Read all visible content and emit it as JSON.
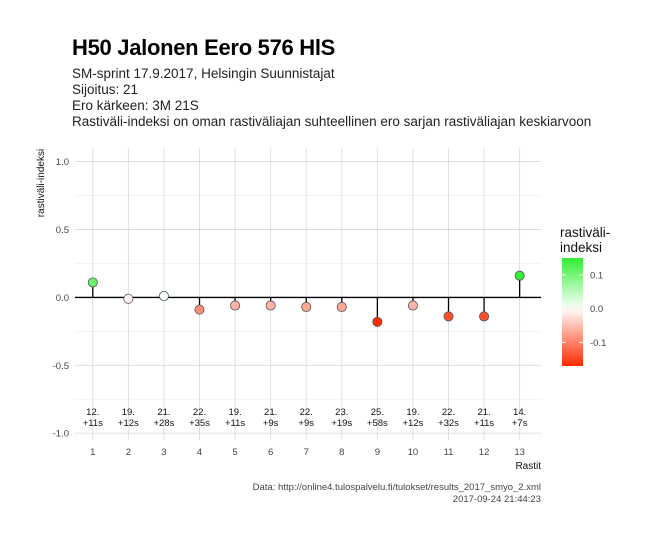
{
  "header": {
    "title": "H50 Jalonen Eero 576 HlS",
    "subtitle_lines": [
      "SM-sprint 17.9.2017, Helsingin Suunnistajat",
      "Sijoitus: 21",
      "Ero kärkeen: 3M 21S",
      "Rastiväli-indeksi on oman rastiväliajan suhteellinen ero sarjan rastiväliajan keskiarvoon"
    ]
  },
  "caption": {
    "source": "Data: http://online4.tulospalvelu.fi/tulokset/results_2017_smyo_2.xml",
    "timestamp": "2017-09-24 21:44:23"
  },
  "legend": {
    "title_lines": [
      "rastiväli-",
      "indeksi"
    ],
    "ticks": [
      {
        "value": 0.1,
        "label": "0.1"
      },
      {
        "value": 0.0,
        "label": "0.0"
      },
      {
        "value": -0.1,
        "label": "-0.1"
      }
    ],
    "range": [
      -0.17,
      0.15
    ],
    "colors": {
      "low": "#ff2a00",
      "mid": "#ffffff",
      "high": "#33ee33"
    }
  },
  "chart_data": {
    "type": "lollipop",
    "xlabel": "Rastit",
    "ylabel": "rastiväli-indeksi",
    "ylim": [
      -1.05,
      1.1
    ],
    "yticks": [
      {
        "value": 1.0,
        "label": "1.0"
      },
      {
        "value": 0.5,
        "label": "0.5"
      },
      {
        "value": 0.0,
        "label": "0.0"
      },
      {
        "value": -0.5,
        "label": "-0.5"
      },
      {
        "value": -1.0,
        "label": "-1.0"
      }
    ],
    "xlim": [
      0.5,
      13.6
    ],
    "grid": true,
    "points": [
      {
        "x": 1,
        "y": 0.11,
        "rank": "12.",
        "diff": "+11s"
      },
      {
        "x": 2,
        "y": -0.01,
        "rank": "19.",
        "diff": "+12s"
      },
      {
        "x": 3,
        "y": 0.01,
        "rank": "21.",
        "diff": "+28s"
      },
      {
        "x": 4,
        "y": -0.09,
        "rank": "22.",
        "diff": "+35s"
      },
      {
        "x": 5,
        "y": -0.06,
        "rank": "19.",
        "diff": "+11s"
      },
      {
        "x": 6,
        "y": -0.06,
        "rank": "21.",
        "diff": "+9s"
      },
      {
        "x": 7,
        "y": -0.07,
        "rank": "22.",
        "diff": "+9s"
      },
      {
        "x": 8,
        "y": -0.07,
        "rank": "23.",
        "diff": "+19s"
      },
      {
        "x": 9,
        "y": -0.18,
        "rank": "25.",
        "diff": "+58s"
      },
      {
        "x": 10,
        "y": -0.06,
        "rank": "19.",
        "diff": "+12s"
      },
      {
        "x": 11,
        "y": -0.14,
        "rank": "22.",
        "diff": "+32s"
      },
      {
        "x": 12,
        "y": -0.14,
        "rank": "21.",
        "diff": "+11s"
      },
      {
        "x": 13,
        "y": 0.16,
        "rank": "14.",
        "diff": "+7s"
      }
    ]
  }
}
